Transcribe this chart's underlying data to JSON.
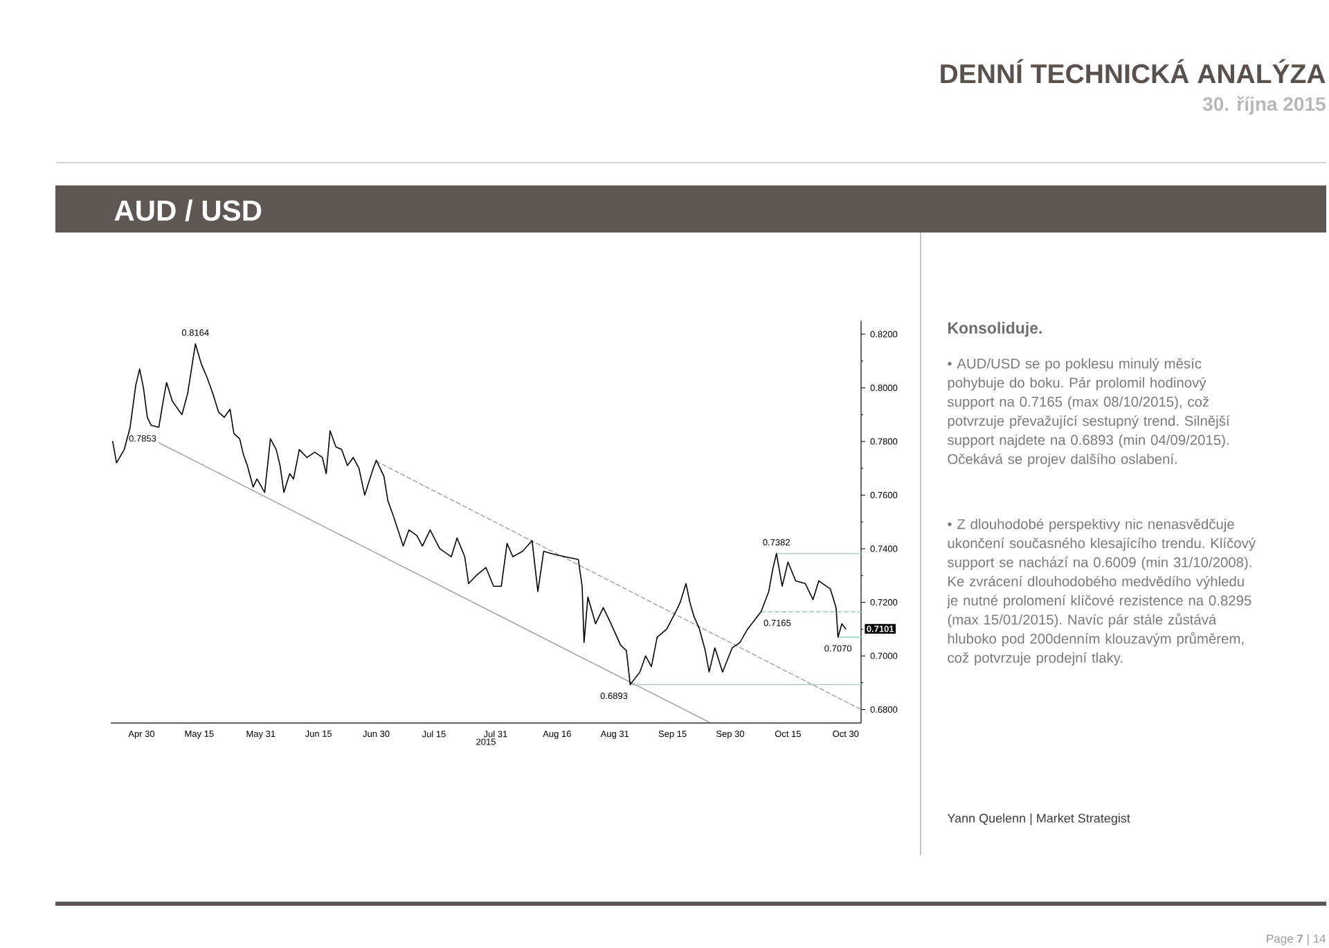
{
  "chart_data": {
    "type": "line",
    "title": "DENNÍ TECHNICKÁ ANALÝZA",
    "subtitle": "30. října 2015",
    "xlabel": "2015",
    "xlim": [
      "2015-04-22",
      "2015-11-03"
    ],
    "ylim": [
      0.675,
      0.825
    ],
    "xticks": [
      {
        "value": "2015-04-30",
        "label": "Apr 30"
      },
      {
        "value": "2015-05-15",
        "label": "May 15"
      },
      {
        "value": "2015-05-31",
        "label": "May 31"
      },
      {
        "value": "2015-06-15",
        "label": "Jun 15"
      },
      {
        "value": "2015-06-30",
        "label": "Jun 30"
      },
      {
        "value": "2015-07-15",
        "label": "Jul 15"
      },
      {
        "value": "2015-07-31",
        "label": "Jul 31"
      },
      {
        "value": "2015-08-16",
        "label": "Aug 16"
      },
      {
        "value": "2015-08-31",
        "label": "Aug 31"
      },
      {
        "value": "2015-09-15",
        "label": "Sep 15"
      },
      {
        "value": "2015-09-30",
        "label": "Sep 30"
      },
      {
        "value": "2015-10-15",
        "label": "Oct 15"
      },
      {
        "value": "2015-10-30",
        "label": "Oct 30"
      }
    ],
    "yticks": [
      {
        "value": 0.68,
        "label": "0.6800"
      },
      {
        "value": 0.69,
        "label": null
      },
      {
        "value": 0.7,
        "label": "0.7000"
      },
      {
        "value": 0.71,
        "label": null
      },
      {
        "value": 0.72,
        "label": "0.7200"
      },
      {
        "value": 0.73,
        "label": null
      },
      {
        "value": 0.74,
        "label": "0.7400"
      },
      {
        "value": 0.75,
        "label": null
      },
      {
        "value": 0.76,
        "label": "0.7600"
      },
      {
        "value": 0.77,
        "label": null
      },
      {
        "value": 0.78,
        "label": "0.7800"
      },
      {
        "value": 0.79,
        "label": null
      },
      {
        "value": 0.8,
        "label": "0.8000"
      },
      {
        "value": 0.81,
        "label": null
      },
      {
        "value": 0.82,
        "label": "0.8200"
      }
    ],
    "series": [
      {
        "color": "#9e9e9e",
        "line_style": "solid",
        "x": [
          "2015-05-04T12:00",
          "2015-09-24T12:00"
        ],
        "values": [
          0.7795,
          0.6753
        ]
      },
      {
        "color": "#9e9e9e",
        "line_style": "dashed",
        "x": [
          "2015-06-30",
          "2015-11-03"
        ],
        "values": [
          0.7726,
          0.68
        ]
      },
      {
        "color": "#8fd4b9",
        "line_style": "solid",
        "x": [
          "2015-10-12",
          "2015-11-03"
        ],
        "values": [
          0.7382,
          0.7382
        ]
      },
      {
        "color": "#8fd4b9",
        "line_style": "dashed",
        "x": [
          "2015-10-08",
          "2015-11-03"
        ],
        "values": [
          0.7165,
          0.7165
        ]
      },
      {
        "color": "#8fd4b9",
        "line_style": "solid",
        "x": [
          "2015-10-28",
          "2015-11-03"
        ],
        "values": [
          0.707,
          0.707
        ]
      },
      {
        "color": "#8fd4b9",
        "line_style": "solid",
        "x": [
          "2015-09-04",
          "2015-11-03"
        ],
        "values": [
          0.6893,
          0.6893
        ]
      },
      {
        "color": "#000000",
        "line_style": "solid",
        "x": [
          "2015-04-22T12:00",
          "2015-04-23T12:00",
          "2015-04-25T12:00",
          "2015-04-27",
          "2015-04-28T12:00",
          "2015-04-29T12:00",
          "2015-04-30T12:00",
          "2015-05-01T12:00",
          "2015-05-02T12:00",
          "2015-05-04T12:00",
          "2015-05-05T12:00",
          "2015-05-06T12:00",
          "2015-05-08",
          "2015-05-09T12:00",
          "2015-05-10T12:00",
          "2015-05-12",
          "2015-05-14",
          "2015-05-15T12:00",
          "2015-05-17",
          "2015-05-18T12:00",
          "2015-05-20",
          "2015-05-21T12:00",
          "2015-05-23",
          "2015-05-24",
          "2015-05-25T12:00",
          "2015-05-26T12:00",
          "2015-05-27T12:00",
          "2015-05-29",
          "2015-05-30",
          "2015-06-01",
          "2015-06-02T12:00",
          "2015-06-04",
          "2015-06-05",
          "2015-06-06",
          "2015-06-07T12:00",
          "2015-06-08T12:00",
          "2015-06-10",
          "2015-06-12",
          "2015-06-14",
          "2015-06-16",
          "2015-06-17",
          "2015-06-18",
          "2015-06-19T12:00",
          "2015-06-21",
          "2015-06-22T12:00",
          "2015-06-24",
          "2015-06-25T12:00",
          "2015-06-27",
          "2015-06-29",
          "2015-06-30",
          "2015-07-02",
          "2015-07-03",
          "2015-07-04T12:00",
          "2015-07-07",
          "2015-07-08T12:00",
          "2015-07-10T12:00",
          "2015-07-12",
          "2015-07-14",
          "2015-07-16T12:00",
          "2015-07-19T12:00",
          "2015-07-21",
          "2015-07-23",
          "2015-07-24",
          "2015-07-26",
          "2015-07-28T12:00",
          "2015-07-30T12:00",
          "2015-08-01T12:00",
          "2015-08-03",
          "2015-08-04T12:00",
          "2015-08-07",
          "2015-08-09T12:00",
          "2015-08-11",
          "2015-08-12T12:00",
          "2015-08-15",
          "2015-08-18",
          "2015-08-21T12:00",
          "2015-08-22T12:00",
          "2015-08-23",
          "2015-08-24",
          "2015-08-26",
          "2015-08-28",
          "2015-08-30",
          "2015-09-01T12:00",
          "2015-09-03",
          "2015-09-04",
          "2015-09-06T12:00",
          "2015-09-08",
          "2015-09-09T12:00",
          "2015-09-11",
          "2015-09-13T12:00",
          "2015-09-16",
          "2015-09-17",
          "2015-09-18T12:00",
          "2015-09-19T12:00",
          "2015-09-20T12:00",
          "2015-09-22",
          "2015-09-23T12:00",
          "2015-09-24T12:00",
          "2015-09-26",
          "2015-09-28",
          "2015-09-30T12:00",
          "2015-10-02T12:00",
          "2015-10-04T12:00",
          "2015-10-08",
          "2015-10-10",
          "2015-10-11",
          "2015-10-12",
          "2015-10-13T12:00",
          "2015-10-15",
          "2015-10-17",
          "2015-10-19T12:00",
          "2015-10-21T12:00",
          "2015-10-23",
          "2015-10-26",
          "2015-10-27T12:00",
          "2015-10-28",
          "2015-10-29",
          "2015-10-30"
        ],
        "values": [
          0.78,
          0.772,
          0.777,
          0.785,
          0.801,
          0.807,
          0.8,
          0.789,
          0.786,
          0.7853,
          0.794,
          0.802,
          0.795,
          0.792,
          0.79,
          0.798,
          0.8164,
          0.809,
          0.804,
          0.798,
          0.791,
          0.789,
          0.792,
          0.783,
          0.781,
          0.775,
          0.771,
          0.763,
          0.766,
          0.761,
          0.781,
          0.777,
          0.771,
          0.761,
          0.768,
          0.766,
          0.777,
          0.774,
          0.776,
          0.774,
          0.768,
          0.784,
          0.778,
          0.777,
          0.771,
          0.774,
          0.77,
          0.76,
          0.769,
          0.773,
          0.767,
          0.758,
          0.752,
          0.741,
          0.747,
          0.745,
          0.741,
          0.747,
          0.74,
          0.737,
          0.744,
          0.737,
          0.727,
          0.73,
          0.733,
          0.726,
          0.726,
          0.742,
          0.737,
          0.739,
          0.743,
          0.724,
          0.739,
          0.738,
          0.737,
          0.736,
          0.726,
          0.705,
          0.722,
          0.712,
          0.718,
          0.712,
          0.704,
          0.702,
          0.6893,
          0.694,
          0.7,
          0.696,
          0.707,
          0.71,
          0.717,
          0.72,
          0.727,
          0.72,
          0.715,
          0.71,
          0.702,
          0.694,
          0.703,
          0.694,
          0.703,
          0.705,
          0.71,
          0.7165,
          0.724,
          0.732,
          0.7382,
          0.726,
          0.735,
          0.728,
          0.727,
          0.721,
          0.728,
          0.725,
          0.718,
          0.707,
          0.712,
          0.7101
        ]
      }
    ],
    "annotations": [
      "AUD / USD",
      "Konsoliduje.",
      "• AUD/USD se po poklesu minulý měsíc pohybuje do boku. Pár prolomil hodinový support na 0.7165 (max 08/10/2015), což potvrzuje převažující sestupný trend. Silnější support najdete na 0.6893 (min 04/09/2015). Očekává se projev dalšího oslabení.",
      "• Z dlouhodobé perspektivy nic nenasvědčuje ukončení současného klesajícího trendu. Klíčový support se nachází na 0.6009 (min 31/10/2008). Ke zvrácení dlouhodobého medvědího výhledu je nutné prolomení klíčové rezistence na 0.8295 (max 15/01/2015). Navíc pár stále zůstává hluboko pod 200denním klouzavým průměrem, což potvrzuje prodejní tlaky.",
      "Yann Quelenn | Market Strategist",
      "Page **7** | 14",
      {
        "text": "0.8164",
        "x": "2015-05-14",
        "y": 0.8164
      },
      {
        "text": "0.7853",
        "x": "2015-05-04T12:00",
        "y": 0.7853
      },
      {
        "text": "0.7382",
        "x": "2015-10-12",
        "y": 0.7382
      },
      {
        "text": "0.7165",
        "x": "2015-10-08",
        "y": 0.7165
      },
      {
        "text": "0.7101",
        "y": 0.7101
      },
      {
        "text": "0.7070",
        "x": "2015-10-28",
        "y": 0.707
      },
      {
        "text": "0.6893",
        "x": "2015-09-04",
        "y": 0.6893
      }
    ]
  }
}
